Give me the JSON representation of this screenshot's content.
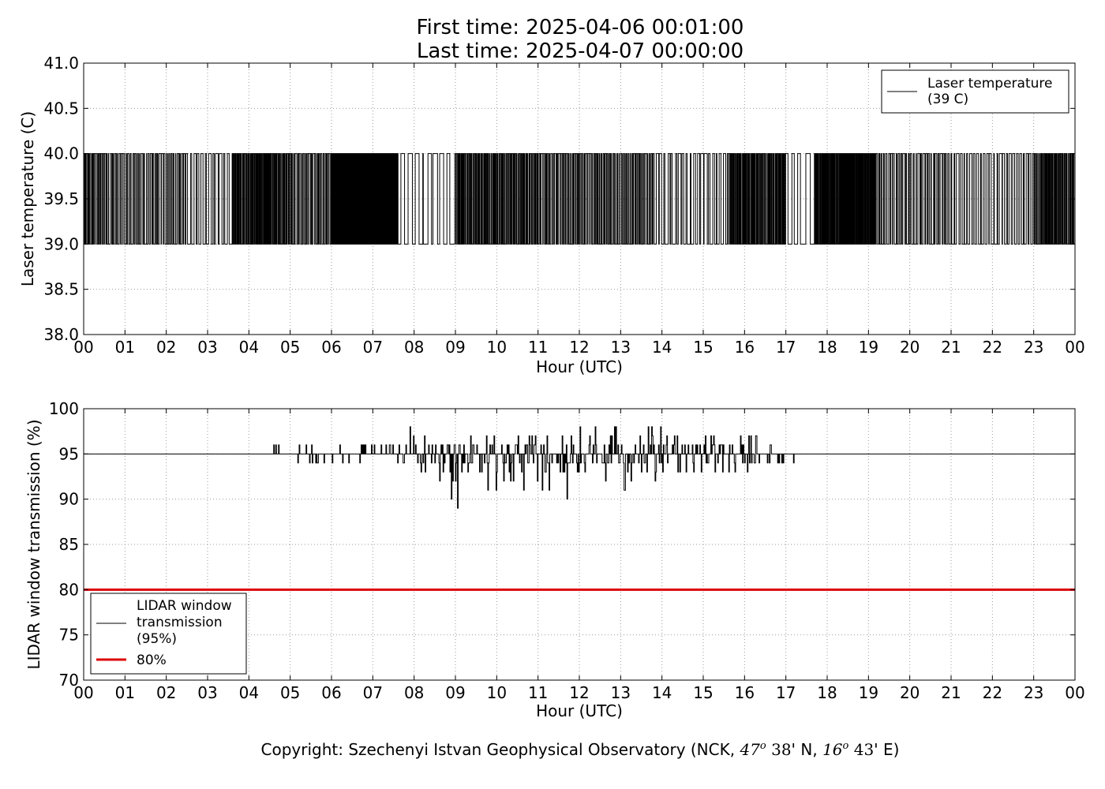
{
  "title": {
    "line1": "First time: 2025-04-06 00:01:00",
    "line2": "Last time: 2025-04-07 00:00:00"
  },
  "copyright": {
    "prefix": "Copyright: Szechenyi Istvan Geophysical Observatory (NCK, ",
    "lat_deg": "47",
    "deg_mark": "o",
    "lat_min": "38",
    "lat_rest": "' N, ",
    "lon_deg": "16",
    "lon_min": "43",
    "lon_rest": "' E)"
  },
  "chart_data": [
    {
      "type": "line",
      "xlabel": "Hour (UTC)",
      "ylabel": "Laser temperature (C)",
      "xlim": [
        0,
        24
      ],
      "ylim": [
        38.0,
        41.0
      ],
      "x_tick_labels": [
        "00",
        "01",
        "02",
        "03",
        "04",
        "05",
        "06",
        "07",
        "08",
        "09",
        "10",
        "11",
        "12",
        "13",
        "14",
        "15",
        "16",
        "17",
        "18",
        "19",
        "20",
        "21",
        "22",
        "23",
        "00"
      ],
      "y_ticks": [
        38.0,
        38.5,
        39.0,
        39.5,
        40.0,
        40.5,
        41.0
      ],
      "y_tick_labels": [
        "38.0",
        "38.5",
        "39.0",
        "39.5",
        "40.0",
        "40.5",
        "41.0"
      ],
      "grid": true,
      "legend_position": "top-right",
      "series": [
        {
          "legend_line1": "Laser temperature",
          "legend_line2": "(39 C)",
          "color": "#000000",
          "step_values": [
            39.0,
            40.0
          ],
          "switching_segments_hours": [
            {
              "start": 0.0,
              "end": 0.6,
              "state_changes": 30
            },
            {
              "start": 0.6,
              "end": 2.5,
              "state_changes": 70
            },
            {
              "start": 2.5,
              "end": 3.6,
              "state_changes": 24
            },
            {
              "start": 3.6,
              "end": 5.0,
              "state_changes": 90
            },
            {
              "start": 5.0,
              "end": 6.0,
              "state_changes": 42
            },
            {
              "start": 6.0,
              "end": 7.6,
              "state_changes": 150
            },
            {
              "start": 7.6,
              "end": 9.0,
              "state_changes": 18
            },
            {
              "start": 9.0,
              "end": 11.0,
              "state_changes": 110
            },
            {
              "start": 11.0,
              "end": 13.8,
              "state_changes": 120
            },
            {
              "start": 13.8,
              "end": 15.6,
              "state_changes": 40
            },
            {
              "start": 15.6,
              "end": 17.0,
              "state_changes": 90
            },
            {
              "start": 17.0,
              "end": 17.7,
              "state_changes": 8
            },
            {
              "start": 17.7,
              "end": 19.2,
              "state_changes": 110
            },
            {
              "start": 19.2,
              "end": 21.0,
              "state_changes": 60
            },
            {
              "start": 21.0,
              "end": 23.0,
              "state_changes": 50
            },
            {
              "start": 23.0,
              "end": 24.0,
              "state_changes": 60
            }
          ]
        }
      ]
    },
    {
      "type": "line",
      "xlabel": "Hour (UTC)",
      "ylabel": "LIDAR window transmission (%)",
      "xlim": [
        0,
        24
      ],
      "ylim": [
        70,
        100
      ],
      "x_tick_labels": [
        "00",
        "01",
        "02",
        "03",
        "04",
        "05",
        "06",
        "07",
        "08",
        "09",
        "10",
        "11",
        "12",
        "13",
        "14",
        "15",
        "16",
        "17",
        "18",
        "19",
        "20",
        "21",
        "22",
        "23",
        "00"
      ],
      "y_ticks": [
        70,
        75,
        80,
        85,
        90,
        95,
        100
      ],
      "y_tick_labels": [
        "70",
        "75",
        "80",
        "85",
        "90",
        "95",
        "100"
      ],
      "grid": true,
      "legend_position": "bottom-left",
      "series": [
        {
          "legend_line1": "LIDAR window",
          "legend_line2": "transmission",
          "legend_line3": "(95%)",
          "color": "#000000",
          "baseline": 95,
          "fluctuation_segments_hours": [
            {
              "start": 4.2,
              "end": 5.2,
              "min": 94,
              "max": 96,
              "deviation_rate": 0.12
            },
            {
              "start": 5.2,
              "end": 7.8,
              "min": 94,
              "max": 96,
              "deviation_rate": 0.45
            },
            {
              "start": 7.8,
              "end": 8.5,
              "min": 93,
              "max": 98,
              "deviation_rate": 0.7
            },
            {
              "start": 8.5,
              "end": 9.5,
              "min": 89,
              "max": 97,
              "deviation_rate": 0.85
            },
            {
              "start": 9.5,
              "end": 11.5,
              "min": 90,
              "max": 97,
              "deviation_rate": 0.8
            },
            {
              "start": 11.5,
              "end": 14.0,
              "min": 90,
              "max": 98,
              "deviation_rate": 0.85
            },
            {
              "start": 14.0,
              "end": 16.5,
              "min": 93,
              "max": 97,
              "deviation_rate": 0.8
            },
            {
              "start": 16.5,
              "end": 17.2,
              "min": 94,
              "max": 96,
              "deviation_rate": 0.5
            }
          ],
          "notable_points": [
            {
              "x": 7.9,
              "y": 98
            },
            {
              "x": 8.9,
              "y": 90
            },
            {
              "x": 9.05,
              "y": 89
            },
            {
              "x": 10.65,
              "y": 91
            },
            {
              "x": 11.1,
              "y": 91
            },
            {
              "x": 11.7,
              "y": 90
            },
            {
              "x": 13.1,
              "y": 91
            },
            {
              "x": 13.75,
              "y": 98
            }
          ]
        },
        {
          "legend_line1": "80%",
          "color": "#dd0000",
          "constant_value": 80
        }
      ]
    }
  ]
}
